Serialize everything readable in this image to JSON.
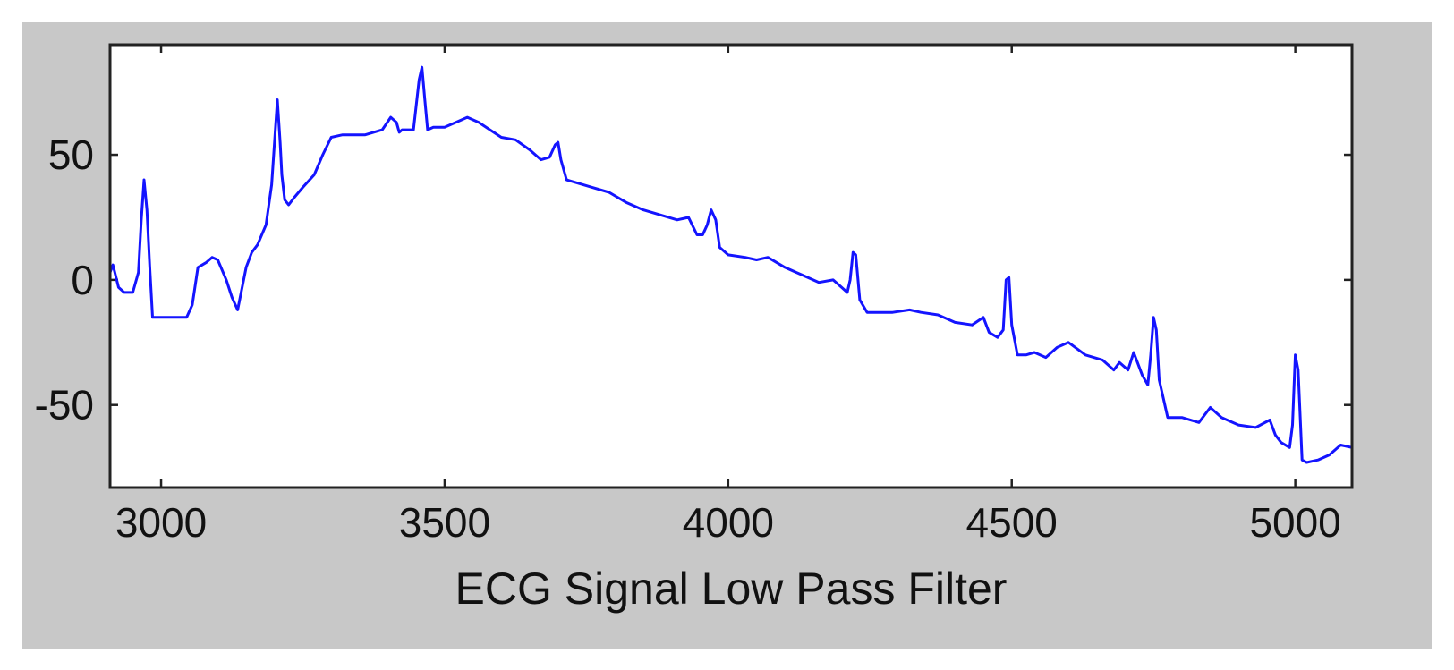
{
  "chart_data": {
    "type": "line",
    "title": "",
    "xlabel": "ECG Signal Low Pass Filter",
    "ylabel": "",
    "xlim": [
      2910,
      5100
    ],
    "ylim": [
      -83,
      94
    ],
    "xticks": [
      3000,
      3500,
      4000,
      4500,
      5000
    ],
    "xtick_labels": [
      "3000",
      "3500",
      "4000",
      "4500",
      "5000"
    ],
    "yticks": [
      -50,
      0,
      50
    ],
    "ytick_labels": [
      "-50",
      "0",
      "50"
    ],
    "grid": false,
    "legend": "none",
    "line_color": "#1414ff",
    "figure_background": "#c8c8c8",
    "axes_background": "#ffffff",
    "series": [
      {
        "x": [
          2910,
          2915,
          2925,
          2935,
          2950,
          2960,
          2965,
          2970,
          2975,
          2980,
          2985,
          2995,
          3010,
          3030,
          3045,
          3055,
          3065,
          3080,
          3090,
          3100,
          3115,
          3125,
          3135,
          3150,
          3160,
          3170,
          3185,
          3195,
          3200,
          3205,
          3210,
          3213,
          3218,
          3225,
          3235,
          3250,
          3270,
          3285,
          3300,
          3320,
          3360,
          3390,
          3405,
          3415,
          3420,
          3425,
          3445,
          3455,
          3460,
          3465,
          3470,
          3480,
          3500,
          3520,
          3540,
          3560,
          3580,
          3600,
          3625,
          3650,
          3670,
          3685,
          3695,
          3700,
          3705,
          3715,
          3730,
          3760,
          3790,
          3820,
          3850,
          3880,
          3910,
          3930,
          3945,
          3955,
          3963,
          3970,
          3978,
          3985,
          4000,
          4030,
          4050,
          4070,
          4100,
          4130,
          4160,
          4185,
          4200,
          4210,
          4215,
          4220,
          4225,
          4232,
          4245,
          4260,
          4290,
          4320,
          4340,
          4370,
          4400,
          4430,
          4450,
          4460,
          4475,
          4485,
          4490,
          4495,
          4500,
          4510,
          4525,
          4540,
          4560,
          4580,
          4600,
          4630,
          4660,
          4680,
          4690,
          4705,
          4715,
          4730,
          4740,
          4745,
          4750,
          4755,
          4760,
          4775,
          4800,
          4830,
          4850,
          4870,
          4900,
          4930,
          4955,
          4965,
          4975,
          4990,
          4995,
          5000,
          5005,
          5012,
          5020,
          5040,
          5060,
          5080,
          5100
        ],
        "y": [
          3,
          6,
          -3,
          -5,
          -5,
          3,
          24,
          40,
          28,
          5,
          -15,
          -15,
          -15,
          -15,
          -15,
          -10,
          5,
          7,
          9,
          8,
          0,
          -7,
          -12,
          5,
          11,
          14,
          22,
          38,
          55,
          72,
          55,
          42,
          32,
          30,
          33,
          37,
          42,
          50,
          57,
          58,
          58,
          60,
          65,
          63,
          59,
          60,
          60,
          80,
          85,
          72,
          60,
          61,
          61,
          63,
          65,
          63,
          60,
          57,
          56,
          52,
          48,
          49,
          54,
          55,
          48,
          40,
          39,
          37,
          35,
          31,
          28,
          26,
          24,
          25,
          18,
          18,
          22,
          28,
          24,
          13,
          10,
          9,
          8,
          9,
          5,
          2,
          -1,
          0,
          -3,
          -5,
          0,
          11,
          10,
          -8,
          -13,
          -13,
          -13,
          -12,
          -13,
          -14,
          -17,
          -18,
          -15,
          -21,
          -23,
          -20,
          0,
          1,
          -18,
          -30,
          -30,
          -29,
          -31,
          -27,
          -25,
          -30,
          -32,
          -36,
          -33,
          -36,
          -29,
          -38,
          -42,
          -30,
          -15,
          -20,
          -40,
          -55,
          -55,
          -57,
          -51,
          -55,
          -58,
          -59,
          -56,
          -62,
          -65,
          -67,
          -58,
          -30,
          -36,
          -72,
          -73,
          -72,
          -70,
          -66,
          -67
        ]
      }
    ]
  }
}
